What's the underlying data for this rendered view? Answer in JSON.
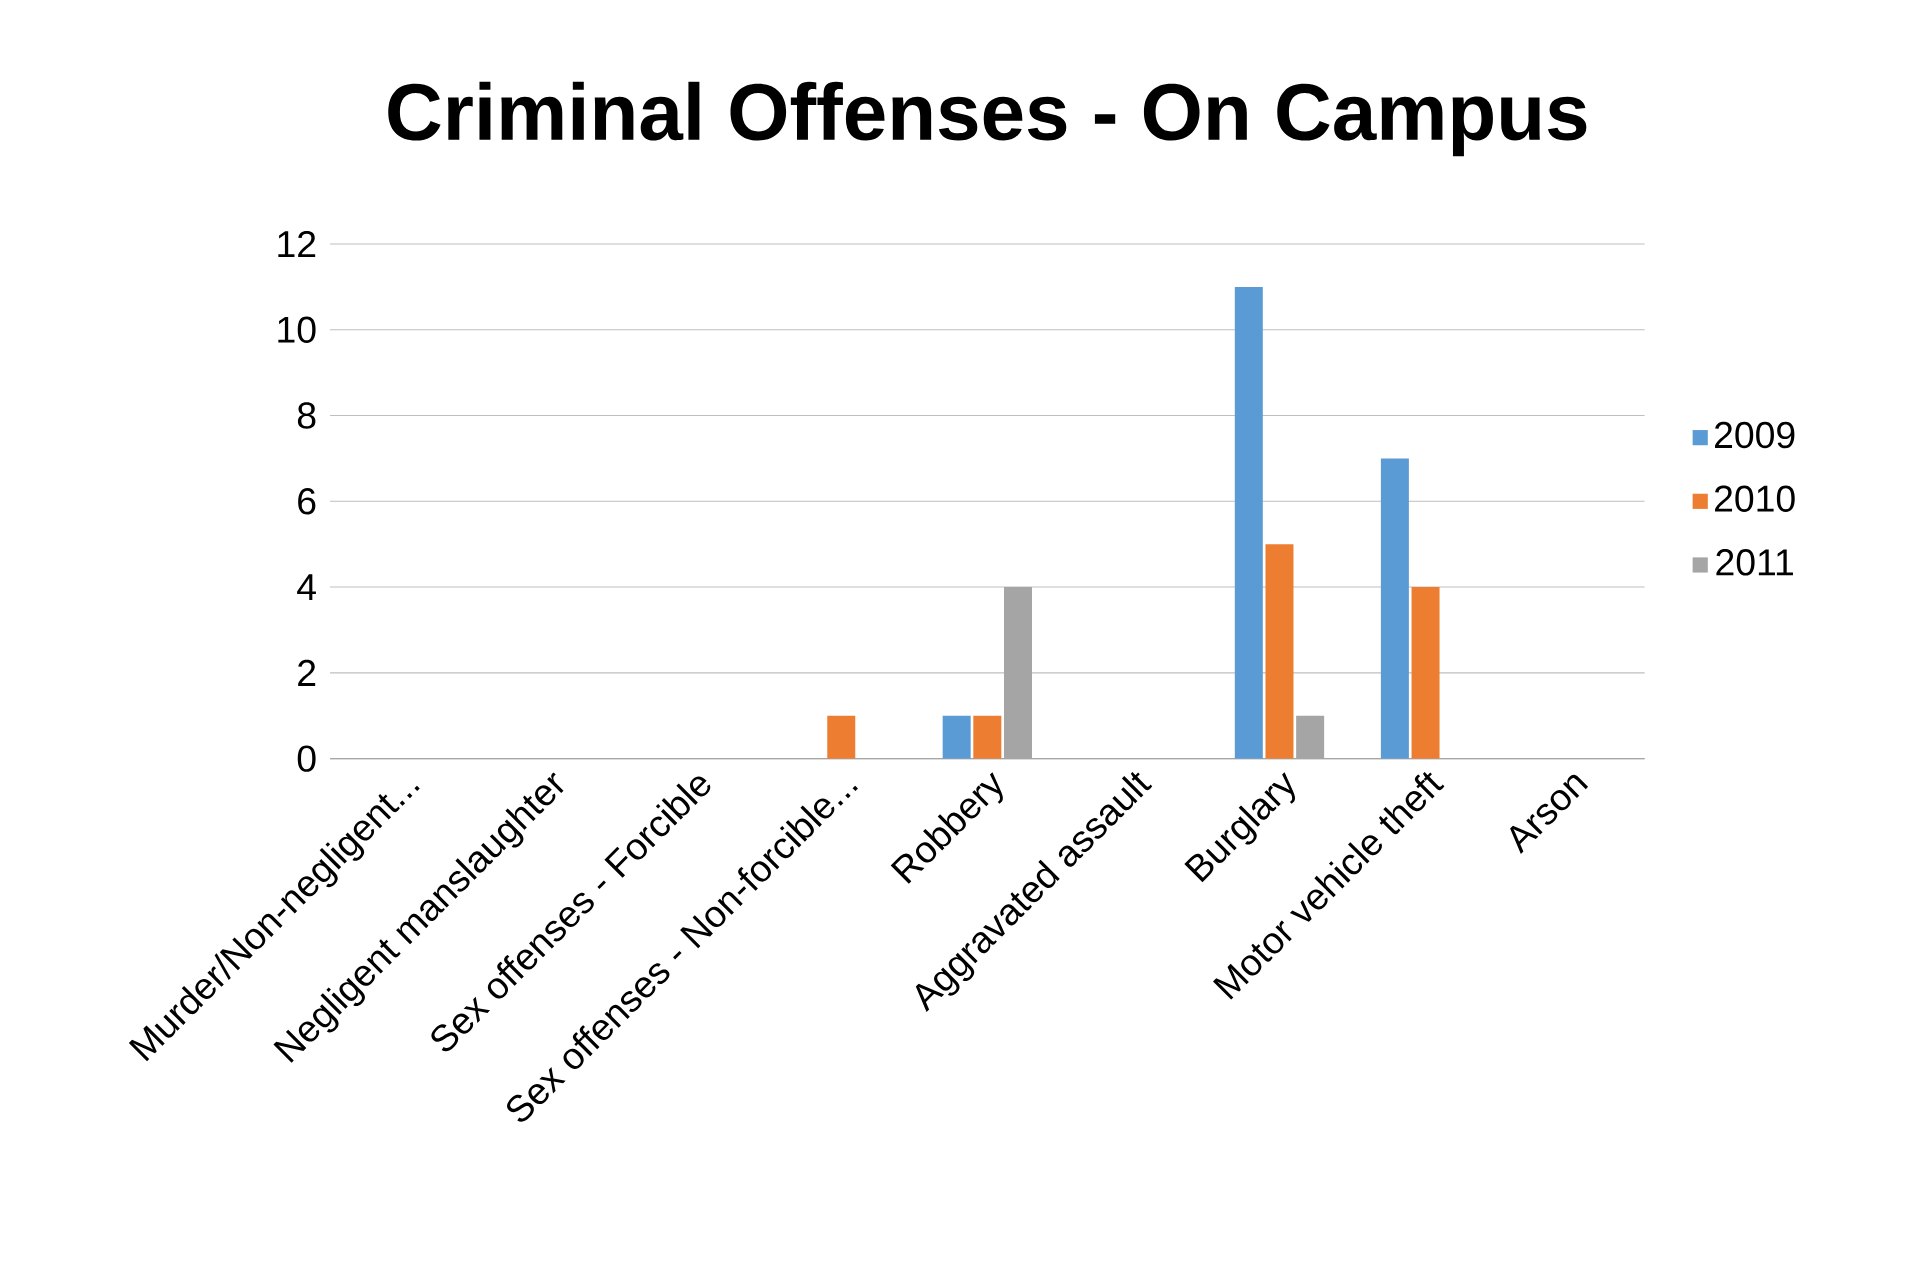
{
  "chart_data": {
    "type": "bar",
    "title": "Criminal Offenses - On Campus",
    "categories": [
      "Murder/Non-negligent...",
      "Negligent manslaughter",
      "Sex offenses - Forcible",
      "Sex offenses - Non-forcible...",
      "Robbery",
      "Aggravated assault",
      "Burglary",
      "Motor vehicle theft",
      "Arson"
    ],
    "series": [
      {
        "name": "2009",
        "color": "#5b9bd5",
        "values": [
          0,
          0,
          0,
          0,
          1,
          0,
          11,
          7,
          0
        ]
      },
      {
        "name": "2010",
        "color": "#ed7d31",
        "values": [
          0,
          0,
          0,
          1,
          1,
          0,
          5,
          4,
          0
        ]
      },
      {
        "name": "2011",
        "color": "#a5a5a5",
        "values": [
          0,
          0,
          0,
          0,
          4,
          0,
          1,
          0,
          0
        ]
      }
    ],
    "ylim": [
      0,
      12
    ],
    "yticks": [
      0,
      2,
      4,
      6,
      8,
      10,
      12
    ],
    "grid": "y",
    "legend": "right"
  }
}
